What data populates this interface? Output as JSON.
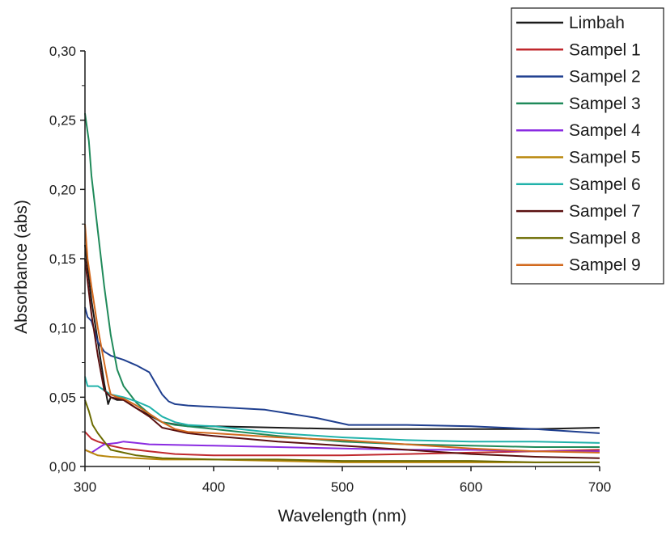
{
  "chart_data": {
    "type": "line",
    "title": "",
    "xlabel": "Wavelength (nm)",
    "ylabel": "Absorbance (abs)",
    "xlim": [
      300,
      700
    ],
    "ylim": [
      0,
      0.3
    ],
    "x_ticks": [
      "300",
      "400",
      "500",
      "600",
      "700"
    ],
    "y_ticks": [
      "0,00",
      "0,05",
      "0,10",
      "0,15",
      "0,20",
      "0,25",
      "0,30"
    ],
    "grid": false,
    "legend_position": "top-right, outside plot",
    "series": [
      {
        "name": "Limbah",
        "color": "#1a1a1a",
        "points": [
          [
            300,
            0.16
          ],
          [
            305,
            0.12
          ],
          [
            310,
            0.09
          ],
          [
            315,
            0.06
          ],
          [
            318,
            0.045
          ],
          [
            320,
            0.05
          ],
          [
            325,
            0.048
          ],
          [
            330,
            0.048
          ],
          [
            340,
            0.042
          ],
          [
            350,
            0.037
          ],
          [
            360,
            0.032
          ],
          [
            380,
            0.029
          ],
          [
            400,
            0.029
          ],
          [
            450,
            0.028
          ],
          [
            500,
            0.027
          ],
          [
            550,
            0.027
          ],
          [
            600,
            0.027
          ],
          [
            650,
            0.027
          ],
          [
            700,
            0.028
          ]
        ]
      },
      {
        "name": "Sampel 1",
        "color": "#c0282d",
        "points": [
          [
            300,
            0.025
          ],
          [
            305,
            0.02
          ],
          [
            310,
            0.018
          ],
          [
            320,
            0.015
          ],
          [
            330,
            0.013
          ],
          [
            340,
            0.012
          ],
          [
            350,
            0.011
          ],
          [
            370,
            0.009
          ],
          [
            400,
            0.008
          ],
          [
            450,
            0.008
          ],
          [
            500,
            0.008
          ],
          [
            550,
            0.009
          ],
          [
            600,
            0.01
          ],
          [
            650,
            0.011
          ],
          [
            700,
            0.012
          ]
        ]
      },
      {
        "name": "Sampel 2",
        "color": "#1f3f8f",
        "points": [
          [
            300,
            0.115
          ],
          [
            302,
            0.108
          ],
          [
            305,
            0.105
          ],
          [
            310,
            0.09
          ],
          [
            315,
            0.083
          ],
          [
            320,
            0.08
          ],
          [
            330,
            0.077
          ],
          [
            340,
            0.073
          ],
          [
            350,
            0.068
          ],
          [
            355,
            0.06
          ],
          [
            360,
            0.052
          ],
          [
            365,
            0.047
          ],
          [
            370,
            0.045
          ],
          [
            380,
            0.044
          ],
          [
            400,
            0.043
          ],
          [
            420,
            0.042
          ],
          [
            440,
            0.041
          ],
          [
            460,
            0.038
          ],
          [
            480,
            0.035
          ],
          [
            500,
            0.031
          ],
          [
            505,
            0.03
          ],
          [
            550,
            0.03
          ],
          [
            600,
            0.029
          ],
          [
            650,
            0.027
          ],
          [
            700,
            0.024
          ]
        ]
      },
      {
        "name": "Sampel 3",
        "color": "#1f8a5a",
        "points": [
          [
            300,
            0.255
          ],
          [
            303,
            0.235
          ],
          [
            305,
            0.21
          ],
          [
            310,
            0.17
          ],
          [
            315,
            0.13
          ],
          [
            320,
            0.095
          ],
          [
            325,
            0.07
          ],
          [
            330,
            0.058
          ],
          [
            335,
            0.052
          ],
          [
            340,
            0.046
          ],
          [
            350,
            0.038
          ],
          [
            360,
            0.032
          ],
          [
            370,
            0.03
          ],
          [
            400,
            0.027
          ],
          [
            450,
            0.022
          ],
          [
            500,
            0.018
          ],
          [
            550,
            0.016
          ],
          [
            600,
            0.015
          ],
          [
            650,
            0.014
          ],
          [
            700,
            0.014
          ]
        ]
      },
      {
        "name": "Sampel 4",
        "color": "#8a2be2",
        "points": [
          [
            300,
            0.012
          ],
          [
            305,
            0.01
          ],
          [
            310,
            0.013
          ],
          [
            315,
            0.016
          ],
          [
            325,
            0.017
          ],
          [
            330,
            0.018
          ],
          [
            340,
            0.017
          ],
          [
            350,
            0.016
          ],
          [
            400,
            0.015
          ],
          [
            450,
            0.014
          ],
          [
            500,
            0.013
          ],
          [
            550,
            0.012
          ],
          [
            600,
            0.012
          ],
          [
            650,
            0.011
          ],
          [
            700,
            0.011
          ]
        ]
      },
      {
        "name": "Sampel 5",
        "color": "#b8860b",
        "points": [
          [
            300,
            0.012
          ],
          [
            305,
            0.01
          ],
          [
            310,
            0.008
          ],
          [
            320,
            0.007
          ],
          [
            340,
            0.006
          ],
          [
            360,
            0.005
          ],
          [
            400,
            0.005
          ],
          [
            450,
            0.004
          ],
          [
            500,
            0.003
          ],
          [
            550,
            0.003
          ],
          [
            600,
            0.003
          ],
          [
            650,
            0.003
          ],
          [
            700,
            0.003
          ]
        ]
      },
      {
        "name": "Sampel 6",
        "color": "#20b2aa",
        "points": [
          [
            300,
            0.065
          ],
          [
            302,
            0.058
          ],
          [
            305,
            0.058
          ],
          [
            310,
            0.058
          ],
          [
            315,
            0.055
          ],
          [
            320,
            0.052
          ],
          [
            330,
            0.05
          ],
          [
            340,
            0.047
          ],
          [
            350,
            0.043
          ],
          [
            360,
            0.036
          ],
          [
            370,
            0.032
          ],
          [
            380,
            0.03
          ],
          [
            400,
            0.029
          ],
          [
            450,
            0.024
          ],
          [
            500,
            0.021
          ],
          [
            550,
            0.019
          ],
          [
            600,
            0.018
          ],
          [
            650,
            0.018
          ],
          [
            700,
            0.017
          ]
        ]
      },
      {
        "name": "Sampel 7",
        "color": "#5a1010",
        "points": [
          [
            300,
            0.15
          ],
          [
            305,
            0.11
          ],
          [
            310,
            0.08
          ],
          [
            315,
            0.055
          ],
          [
            320,
            0.05
          ],
          [
            330,
            0.048
          ],
          [
            340,
            0.042
          ],
          [
            350,
            0.036
          ],
          [
            360,
            0.028
          ],
          [
            380,
            0.024
          ],
          [
            400,
            0.022
          ],
          [
            450,
            0.018
          ],
          [
            500,
            0.015
          ],
          [
            550,
            0.012
          ],
          [
            600,
            0.009
          ],
          [
            650,
            0.007
          ],
          [
            700,
            0.006
          ]
        ]
      },
      {
        "name": "Sampel 8",
        "color": "#6b6b00",
        "points": [
          [
            300,
            0.048
          ],
          [
            303,
            0.04
          ],
          [
            306,
            0.03
          ],
          [
            310,
            0.024
          ],
          [
            315,
            0.018
          ],
          [
            320,
            0.012
          ],
          [
            330,
            0.01
          ],
          [
            340,
            0.008
          ],
          [
            360,
            0.006
          ],
          [
            400,
            0.005
          ],
          [
            450,
            0.005
          ],
          [
            500,
            0.004
          ],
          [
            550,
            0.004
          ],
          [
            600,
            0.004
          ],
          [
            650,
            0.003
          ],
          [
            700,
            0.003
          ]
        ]
      },
      {
        "name": "Sampel 9",
        "color": "#d2691e",
        "points": [
          [
            300,
            0.175
          ],
          [
            302,
            0.15
          ],
          [
            305,
            0.13
          ],
          [
            310,
            0.1
          ],
          [
            315,
            0.075
          ],
          [
            318,
            0.06
          ],
          [
            320,
            0.052
          ],
          [
            325,
            0.05
          ],
          [
            330,
            0.049
          ],
          [
            340,
            0.044
          ],
          [
            350,
            0.038
          ],
          [
            360,
            0.032
          ],
          [
            370,
            0.027
          ],
          [
            380,
            0.025
          ],
          [
            400,
            0.024
          ],
          [
            450,
            0.021
          ],
          [
            500,
            0.019
          ],
          [
            550,
            0.016
          ],
          [
            600,
            0.013
          ],
          [
            650,
            0.011
          ],
          [
            700,
            0.01
          ]
        ]
      }
    ]
  }
}
